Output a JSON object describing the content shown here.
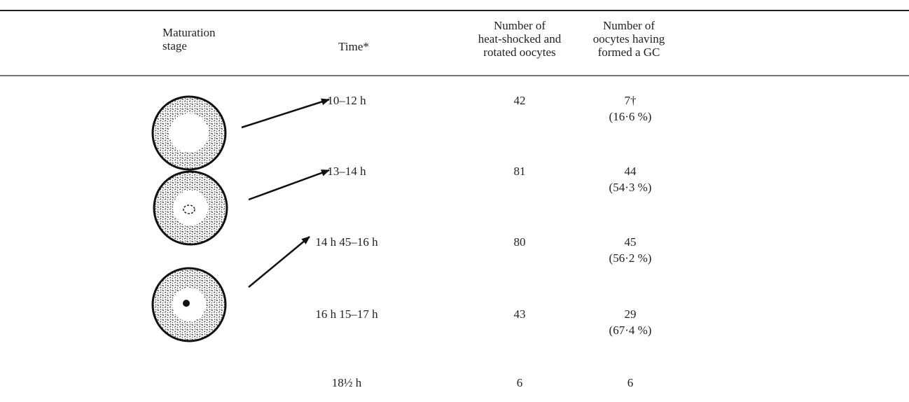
{
  "table": {
    "headers": {
      "stage": [
        "Maturation",
        "stage"
      ],
      "time": [
        "Time*"
      ],
      "number": [
        "Number of",
        "heat-shocked and",
        "rotated oocytes"
      ],
      "formed": [
        "Number of",
        "oocytes having",
        "formed a GC"
      ]
    },
    "rows": [
      {
        "time": "10–12 h",
        "number": "42",
        "formed": "7†",
        "percent": "(16·6 %)"
      },
      {
        "time": "13–14 h",
        "number": "81",
        "formed": "44",
        "percent": "(54·3 %)"
      },
      {
        "time": "14 h 45–16 h",
        "number": "80",
        "formed": "45",
        "percent": "(56·2 %)"
      },
      {
        "time": "16 h 15–17 h",
        "number": "43",
        "formed": "29",
        "percent": "(67·4 %)"
      },
      {
        "time": "18½ h",
        "number": "6",
        "formed": "6"
      }
    ]
  }
}
